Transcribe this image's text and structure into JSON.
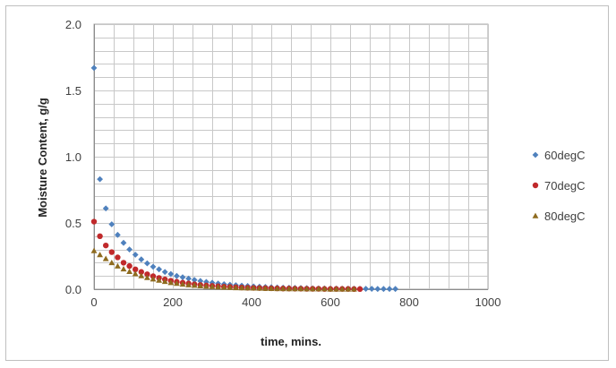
{
  "chart_data": {
    "type": "scatter",
    "title": "",
    "xlabel": "time, mins.",
    "ylabel": "Moisture Content, g/g",
    "xlim": [
      0,
      1000
    ],
    "ylim": [
      0.0,
      2.0
    ],
    "x_ticks": [
      0,
      200,
      400,
      600,
      800,
      1000
    ],
    "y_ticks": [
      "0.0",
      "0.5",
      "1.0",
      "1.5",
      "2.0"
    ],
    "x_minor_step": 50,
    "y_minor_step": 0.1,
    "grid": true,
    "legend_position": "right",
    "series": [
      {
        "name": "60degC",
        "color": "#4f81bd",
        "marker": "diamond",
        "x": [
          0,
          15,
          30,
          45,
          60,
          75,
          90,
          105,
          120,
          135,
          150,
          165,
          180,
          195,
          210,
          225,
          240,
          255,
          270,
          285,
          300,
          315,
          330,
          345,
          360,
          375,
          390,
          405,
          420,
          435,
          450,
          465,
          480,
          495,
          510,
          525,
          540,
          555,
          570,
          585,
          600,
          615,
          630,
          645,
          660,
          675,
          690,
          705,
          720,
          735,
          750,
          765
        ],
        "y": [
          1.67,
          0.83,
          0.61,
          0.49,
          0.41,
          0.35,
          0.3,
          0.26,
          0.225,
          0.195,
          0.17,
          0.15,
          0.13,
          0.115,
          0.1,
          0.09,
          0.08,
          0.07,
          0.062,
          0.055,
          0.049,
          0.043,
          0.038,
          0.034,
          0.03,
          0.027,
          0.024,
          0.021,
          0.019,
          0.017,
          0.015,
          0.013,
          0.012,
          0.011,
          0.01,
          0.009,
          0.008,
          0.007,
          0.006,
          0.006,
          0.005,
          0.005,
          0.004,
          0.004,
          0.004,
          0.003,
          0.003,
          0.003,
          0.002,
          0.002,
          0.002,
          0.002
        ]
      },
      {
        "name": "70degC",
        "color": "#c0292b",
        "marker": "circle",
        "x": [
          0,
          15,
          30,
          45,
          60,
          75,
          90,
          105,
          120,
          135,
          150,
          165,
          180,
          195,
          210,
          225,
          240,
          255,
          270,
          285,
          300,
          315,
          330,
          345,
          360,
          375,
          390,
          405,
          420,
          435,
          450,
          465,
          480,
          495,
          510,
          525,
          540,
          555,
          570,
          585,
          600,
          615,
          630,
          645,
          660,
          675
        ],
        "y": [
          0.51,
          0.4,
          0.33,
          0.28,
          0.24,
          0.2,
          0.175,
          0.15,
          0.13,
          0.113,
          0.098,
          0.085,
          0.074,
          0.064,
          0.056,
          0.049,
          0.043,
          0.037,
          0.032,
          0.028,
          0.025,
          0.022,
          0.019,
          0.017,
          0.015,
          0.013,
          0.011,
          0.01,
          0.009,
          0.008,
          0.007,
          0.006,
          0.005,
          0.005,
          0.004,
          0.004,
          0.003,
          0.003,
          0.003,
          0.002,
          0.002,
          0.002,
          0.002,
          0.002,
          0.001,
          0.001
        ]
      },
      {
        "name": "80degC",
        "color": "#8e6b1f",
        "marker": "triangle",
        "x": [
          0,
          15,
          30,
          45,
          60,
          75,
          90,
          105,
          120,
          135,
          150,
          165,
          180,
          195,
          210,
          225,
          240,
          255,
          270,
          285,
          300,
          315,
          330,
          345,
          360,
          375,
          390,
          405,
          420,
          435,
          450,
          465,
          480,
          495,
          510,
          525,
          540,
          555,
          570,
          585,
          600,
          615,
          630,
          645,
          660
        ],
        "y": [
          0.29,
          0.26,
          0.23,
          0.2,
          0.175,
          0.153,
          0.133,
          0.116,
          0.101,
          0.088,
          0.077,
          0.067,
          0.058,
          0.05,
          0.044,
          0.038,
          0.033,
          0.029,
          0.025,
          0.022,
          0.019,
          0.017,
          0.015,
          0.013,
          0.011,
          0.01,
          0.009,
          0.008,
          0.007,
          0.006,
          0.005,
          0.004,
          0.004,
          0.003,
          0.003,
          0.003,
          0.002,
          0.002,
          0.002,
          0.002,
          0.001,
          0.001,
          0.001,
          0.001,
          0.001
        ]
      }
    ]
  }
}
